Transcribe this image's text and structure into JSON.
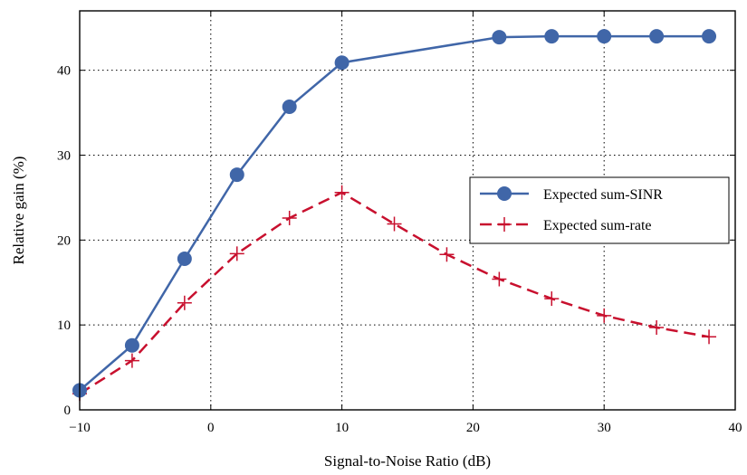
{
  "chart_data": {
    "type": "line",
    "xlabel": "Signal-to-Noise Ratio (dB)",
    "ylabel": "Relative gain (%)",
    "xlim": [
      -10,
      40
    ],
    "ylim": [
      0,
      47
    ],
    "xticks": [
      -10,
      0,
      10,
      20,
      30,
      40
    ],
    "xtick_labels": [
      "−10",
      "0",
      "10",
      "20",
      "30",
      "40"
    ],
    "yticks": [
      0,
      10,
      20,
      30,
      40
    ],
    "ytick_labels": [
      "0",
      "10",
      "20",
      "30",
      "40"
    ],
    "grid": true,
    "legend_position": "right-middle",
    "series": [
      {
        "name": "Expected sum-SINR",
        "color": "#4066a8",
        "line": "solid",
        "marker": "circle",
        "x": [
          -10,
          -6,
          -2,
          2,
          6,
          10,
          22,
          26,
          30,
          34,
          38
        ],
        "y": [
          2.3,
          7.6,
          17.8,
          27.7,
          35.7,
          40.9,
          43.9,
          44.0,
          44.0,
          44.0,
          44.0
        ]
      },
      {
        "name": "Expected sum-rate",
        "color": "#c8102e",
        "line": "dashed",
        "marker": "plus",
        "x": [
          -10,
          -6,
          -2,
          2,
          6,
          10,
          14,
          18,
          22,
          26,
          30,
          34,
          38
        ],
        "y": [
          1.9,
          5.8,
          12.6,
          18.4,
          22.6,
          25.6,
          21.9,
          18.3,
          15.4,
          13.1,
          11.1,
          9.7,
          8.6
        ]
      }
    ]
  }
}
